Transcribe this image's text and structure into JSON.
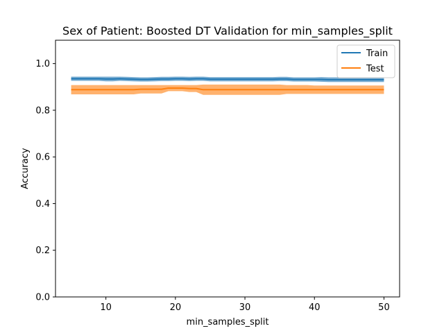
{
  "chart_data": {
    "type": "line",
    "title": "Sex of Patient: Boosted DT Validation for min_samples_split",
    "xlabel": "min_samples_split",
    "ylabel": "Accuracy",
    "xlim": [
      2.75,
      52.25
    ],
    "ylim": [
      0.0,
      1.1
    ],
    "xticks": [
      10,
      20,
      30,
      40,
      50
    ],
    "yticks": [
      0.0,
      0.2,
      0.4,
      0.6,
      0.8,
      1.0
    ],
    "grid": false,
    "legend_position": "top-right",
    "x": [
      5,
      6,
      7,
      8,
      9,
      10,
      11,
      12,
      13,
      14,
      15,
      16,
      17,
      18,
      19,
      20,
      21,
      22,
      23,
      24,
      25,
      26,
      27,
      28,
      29,
      30,
      31,
      32,
      33,
      34,
      35,
      36,
      37,
      38,
      39,
      40,
      41,
      42,
      43,
      44,
      45,
      46,
      47,
      48,
      49,
      50
    ],
    "series": [
      {
        "name": "Train",
        "color": "#1f77b4",
        "values": [
          0.935,
          0.935,
          0.935,
          0.935,
          0.935,
          0.934,
          0.934,
          0.935,
          0.934,
          0.933,
          0.932,
          0.932,
          0.933,
          0.934,
          0.934,
          0.935,
          0.935,
          0.934,
          0.935,
          0.935,
          0.933,
          0.933,
          0.933,
          0.933,
          0.933,
          0.933,
          0.933,
          0.933,
          0.933,
          0.933,
          0.934,
          0.934,
          0.932,
          0.932,
          0.932,
          0.932,
          0.932,
          0.931,
          0.931,
          0.931,
          0.931,
          0.931,
          0.931,
          0.931,
          0.931,
          0.931
        ],
        "band_lower": [
          0.926,
          0.926,
          0.926,
          0.926,
          0.926,
          0.924,
          0.924,
          0.926,
          0.925,
          0.924,
          0.923,
          0.923,
          0.924,
          0.925,
          0.925,
          0.926,
          0.926,
          0.925,
          0.926,
          0.926,
          0.924,
          0.924,
          0.924,
          0.924,
          0.924,
          0.924,
          0.924,
          0.924,
          0.924,
          0.924,
          0.925,
          0.925,
          0.923,
          0.923,
          0.923,
          0.923,
          0.922,
          0.921,
          0.921,
          0.921,
          0.921,
          0.921,
          0.921,
          0.921,
          0.921,
          0.921
        ],
        "band_upper": [
          0.944,
          0.944,
          0.944,
          0.944,
          0.944,
          0.944,
          0.944,
          0.944,
          0.943,
          0.942,
          0.941,
          0.941,
          0.942,
          0.943,
          0.943,
          0.944,
          0.944,
          0.943,
          0.944,
          0.944,
          0.942,
          0.942,
          0.942,
          0.942,
          0.942,
          0.942,
          0.942,
          0.942,
          0.942,
          0.942,
          0.943,
          0.943,
          0.941,
          0.941,
          0.941,
          0.941,
          0.942,
          0.941,
          0.941,
          0.941,
          0.941,
          0.941,
          0.941,
          0.941,
          0.941,
          0.941
        ]
      },
      {
        "name": "Test",
        "color": "#ff7f0e",
        "values": [
          0.888,
          0.888,
          0.888,
          0.888,
          0.888,
          0.888,
          0.888,
          0.888,
          0.888,
          0.888,
          0.89,
          0.89,
          0.89,
          0.89,
          0.895,
          0.895,
          0.895,
          0.893,
          0.893,
          0.888,
          0.888,
          0.888,
          0.888,
          0.888,
          0.888,
          0.888,
          0.888,
          0.888,
          0.888,
          0.888,
          0.888,
          0.888,
          0.888,
          0.888,
          0.888,
          0.888,
          0.888,
          0.888,
          0.888,
          0.888,
          0.888,
          0.888,
          0.888,
          0.888,
          0.888,
          0.888
        ],
        "band_lower": [
          0.868,
          0.868,
          0.868,
          0.868,
          0.868,
          0.868,
          0.868,
          0.868,
          0.868,
          0.868,
          0.872,
          0.872,
          0.872,
          0.872,
          0.882,
          0.882,
          0.882,
          0.878,
          0.878,
          0.866,
          0.866,
          0.866,
          0.866,
          0.866,
          0.866,
          0.866,
          0.866,
          0.866,
          0.866,
          0.866,
          0.866,
          0.87,
          0.87,
          0.87,
          0.87,
          0.87,
          0.87,
          0.87,
          0.87,
          0.87,
          0.87,
          0.87,
          0.87,
          0.87,
          0.87,
          0.87
        ],
        "band_upper": [
          0.908,
          0.908,
          0.908,
          0.908,
          0.908,
          0.908,
          0.908,
          0.908,
          0.908,
          0.908,
          0.908,
          0.908,
          0.908,
          0.908,
          0.908,
          0.908,
          0.908,
          0.908,
          0.908,
          0.91,
          0.91,
          0.91,
          0.91,
          0.91,
          0.91,
          0.91,
          0.91,
          0.91,
          0.91,
          0.91,
          0.91,
          0.908,
          0.908,
          0.908,
          0.908,
          0.906,
          0.906,
          0.906,
          0.906,
          0.906,
          0.906,
          0.906,
          0.906,
          0.906,
          0.906,
          0.906
        ]
      }
    ]
  }
}
